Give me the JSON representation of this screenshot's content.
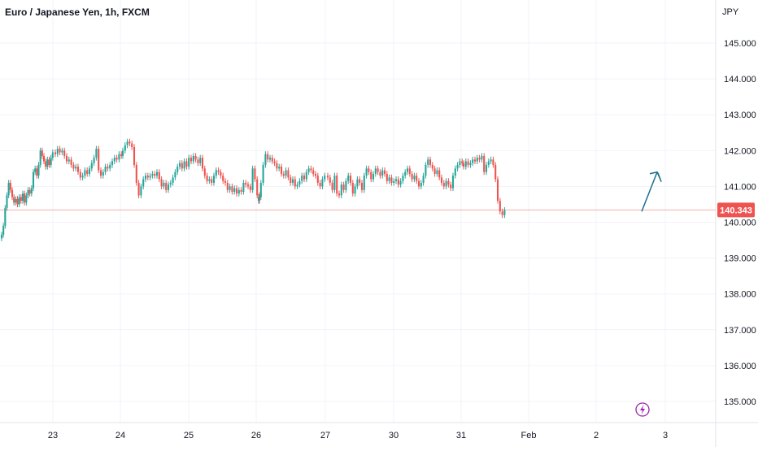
{
  "header": {
    "title": "Euro / Japanese Yen, 1h, FXCM"
  },
  "chart_data": {
    "type": "candlestick",
    "title": "Euro / Japanese Yen, 1h, FXCM",
    "currency_label": "JPY",
    "ylim": [
      134.6,
      145.9
    ],
    "y_ticks": [
      "145.000",
      "144.000",
      "143.000",
      "142.000",
      "141.000",
      "140.000",
      "139.000",
      "138.000",
      "137.000",
      "136.000",
      "135.000"
    ],
    "x_ticks": [
      "23",
      "24",
      "25",
      "26",
      "27",
      "30",
      "31",
      "Feb",
      "2",
      "3"
    ],
    "current_price": "140.343",
    "grid": true,
    "colors": {
      "up": "#26a69a",
      "down": "#ef5350",
      "arrow": "#1e6f8f",
      "price_line": "#ef5350",
      "price_label_bg": "#ef5350",
      "bolt": "#9c27b0"
    },
    "annotation": {
      "type": "arrow",
      "from_price": 140.3,
      "to_price": 141.4
    },
    "icons": [
      "lightning-bolt-icon"
    ],
    "series": [
      {
        "x": "23",
        "close": [
          139.65,
          139.9,
          140.4,
          140.75,
          141.1,
          140.9,
          140.7,
          140.55,
          140.65,
          140.5,
          140.7,
          140.6,
          140.8,
          140.55,
          140.75,
          140.9,
          140.8,
          140.95,
          141.4,
          141.5,
          141.3,
          141.6,
          142.0,
          141.85,
          141.7,
          141.55,
          141.75,
          141.6,
          141.8,
          141.95
        ]
      },
      {
        "x": "24",
        "close": [
          141.9,
          142.05,
          141.95,
          142.0,
          141.85,
          141.7,
          141.75,
          141.6,
          141.5,
          141.55,
          141.4,
          141.25,
          141.3,
          141.45,
          141.35,
          141.5,
          141.65,
          141.8,
          142.05,
          141.45,
          141.3,
          141.4,
          141.55,
          141.5,
          141.6,
          141.7,
          141.8,
          141.75,
          141.9,
          141.85
        ]
      },
      {
        "x": "25",
        "close": [
          142.0,
          142.15,
          142.25,
          142.2,
          142.1,
          141.6,
          141.1,
          140.75,
          141.0,
          141.2,
          141.3,
          141.25,
          141.3,
          141.35,
          141.3,
          141.4,
          141.2,
          141.0,
          141.1,
          140.9,
          141.05,
          141.1,
          141.25,
          141.4,
          141.55,
          141.65,
          141.5,
          141.7,
          141.55,
          141.8
        ]
      },
      {
        "x": "26",
        "close": [
          141.7,
          141.85,
          141.75,
          141.65,
          141.8,
          141.5,
          141.3,
          141.15,
          141.2,
          141.1,
          141.3,
          141.45,
          141.4,
          141.3,
          141.15,
          141.1,
          140.9,
          141.0,
          140.85,
          140.95,
          140.8,
          140.9,
          140.85,
          141.1,
          141.05,
          141.0,
          140.9,
          141.5,
          141.2,
          140.75,
          140.6
        ]
      },
      {
        "x": "27",
        "close": [
          140.7,
          141.1,
          141.6,
          141.9,
          141.75,
          141.8,
          141.7,
          141.65,
          141.5,
          141.55,
          141.35,
          141.3,
          141.45,
          141.25,
          141.1,
          141.2,
          141.0,
          141.05,
          141.15,
          141.3,
          141.2,
          141.4,
          141.5,
          141.45,
          141.35,
          141.3,
          141.1,
          141.0,
          141.2,
          141.3
        ]
      },
      {
        "x": "30",
        "close": [
          141.25,
          141.1,
          140.9,
          141.3,
          140.8,
          140.75,
          141.05,
          140.9,
          141.15,
          141.3,
          141.1,
          140.8,
          141.0,
          141.2,
          141.1,
          140.9,
          141.3,
          141.5,
          141.4,
          141.2,
          141.35,
          141.5,
          141.4,
          141.3,
          141.45,
          141.35,
          141.15,
          141.25,
          141.1,
          141.15
        ]
      },
      {
        "x": "31",
        "close": [
          141.2,
          141.05,
          141.15,
          141.3,
          141.4,
          141.5,
          141.35,
          141.2,
          141.3,
          141.15,
          141.0,
          141.1,
          141.3,
          141.6,
          141.75,
          141.6,
          141.5,
          141.35,
          141.45,
          141.25,
          141.1,
          141.0,
          141.15,
          141.05,
          140.95,
          141.3,
          141.5,
          141.6,
          141.7,
          141.65
        ]
      },
      {
        "x": "Feb",
        "close": [
          141.55,
          141.7,
          141.6,
          141.65,
          141.75,
          141.7,
          141.8,
          141.75,
          141.85,
          141.4,
          141.6,
          141.7,
          141.75,
          141.6,
          141.2,
          140.6,
          140.3,
          140.2,
          140.34
        ]
      }
    ]
  }
}
